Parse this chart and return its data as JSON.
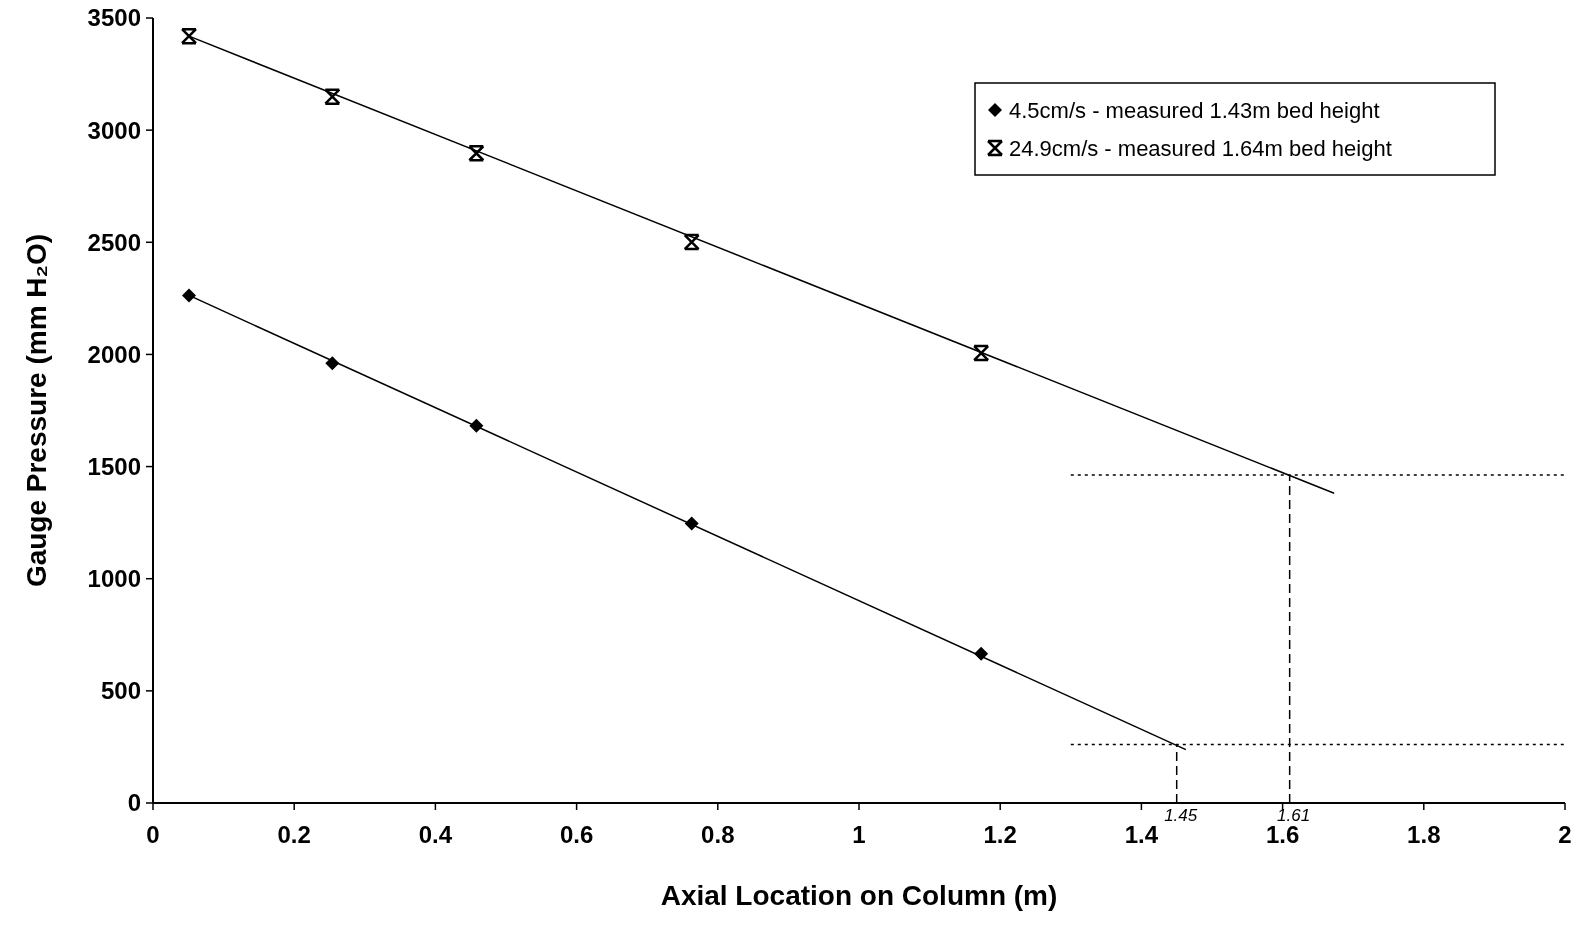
{
  "chart_data": {
    "type": "scatter",
    "xlabel": "Axial Location on Column (m)",
    "ylabel": "Gauge Pressure (mm H₂O)",
    "xlim": [
      0,
      2
    ],
    "xticks": [
      0,
      0.2,
      0.4,
      0.6,
      0.8,
      1,
      1.2,
      1.4,
      1.6,
      1.8,
      2
    ],
    "ylim": [
      0,
      3500
    ],
    "yticks": [
      0,
      500,
      1000,
      1500,
      2000,
      2500,
      3000,
      3500
    ],
    "grid": false,
    "legend": "top right",
    "series": [
      {
        "name": "4.5cm/s - measured 1.43m bed height",
        "marker": "diamond",
        "color": "#000000",
        "x": [
          0.051,
          0.254,
          0.458,
          0.763,
          1.173
        ],
        "values": [
          2263,
          1961,
          1682,
          1246,
          666
        ]
      },
      {
        "name": "24.9cm/s - measured 1.64m bed height",
        "marker": "cross",
        "color": "#000000",
        "x": [
          0.051,
          0.254,
          0.458,
          0.763,
          1.173
        ],
        "values": [
          3419,
          3149,
          2897,
          2501,
          2006
        ]
      },
      {
        "type": "line",
        "marker": "none",
        "line_style": "solid",
        "color": "#000000",
        "x": [
          0.051,
          1.463
        ],
        "values": [
          2263,
          238
        ]
      },
      {
        "type": "line",
        "marker": "none",
        "line_style": "solid",
        "color": "#000000",
        "x": [
          0.051,
          1.673
        ],
        "values": [
          3419,
          1381
        ]
      },
      {
        "type": "line",
        "marker": "none",
        "line_style": "dotted",
        "color": "#000000",
        "x": [
          1.3,
          2
        ],
        "values": [
          261,
          261
        ]
      },
      {
        "type": "line",
        "marker": "none",
        "line_style": "dotted",
        "color": "#000000",
        "x": [
          1.3,
          2
        ],
        "values": [
          1462,
          1462
        ]
      },
      {
        "type": "line",
        "marker": "none",
        "line_style": "dashed",
        "color": "#000000",
        "x": [
          1.45,
          1.45
        ],
        "values": [
          0,
          261
        ]
      },
      {
        "type": "line",
        "marker": "none",
        "line_style": "dashed",
        "color": "#000000",
        "x": [
          1.61,
          1.61
        ],
        "values": [
          0,
          1462
        ]
      }
    ],
    "annotations": [
      {
        "text": "1.45",
        "x": 1.45,
        "y": 0
      },
      {
        "text": "1.61",
        "x": 1.61,
        "y": 0
      }
    ]
  }
}
